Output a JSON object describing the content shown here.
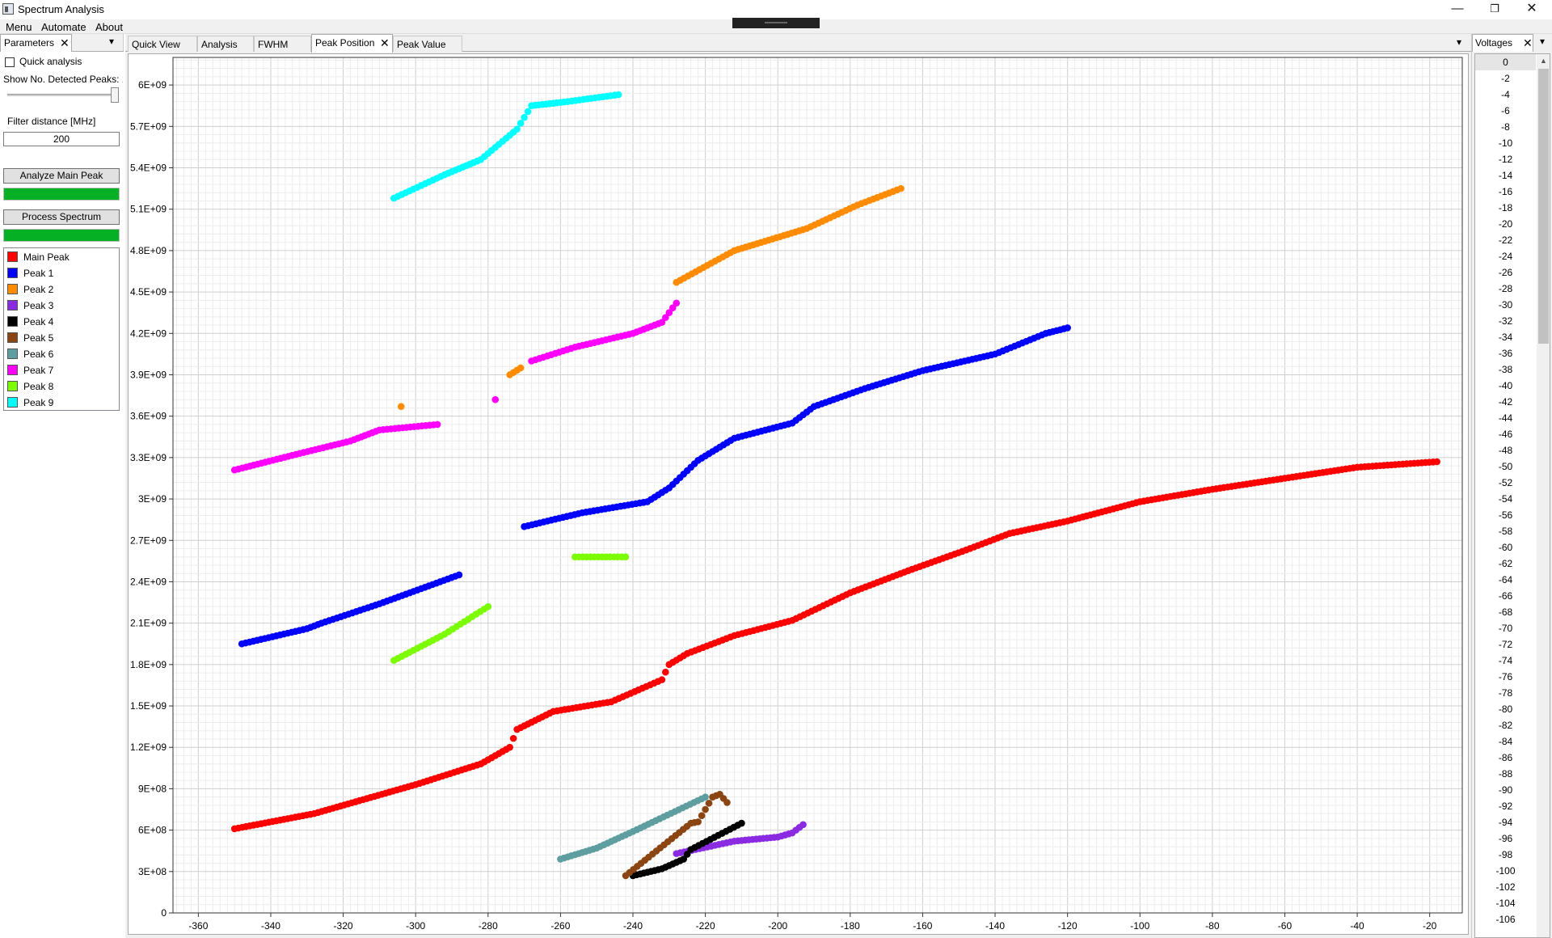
{
  "window": {
    "title": "Spectrum Analysis",
    "minimize": "—",
    "maximize": "❐",
    "close": "✕"
  },
  "menubar": {
    "items": [
      "Menu",
      "Automate",
      "About"
    ]
  },
  "left_panel": {
    "tab": "Parameters",
    "tab_close": "✕",
    "menu_glyph": "▾",
    "quick_analysis_label": "Quick analysis",
    "quick_analysis_checked": false,
    "show_peaks_label": "Show No. Detected Peaks: 10",
    "filter_label": "Filter distance [MHz]",
    "filter_value": "200",
    "analyze_button": "Analyze Main Peak",
    "analyze_progress": 1.0,
    "process_button": "Process Spectrum",
    "process_progress": 1.0,
    "legend": [
      {
        "label": "Main Peak",
        "color": "#ff0000"
      },
      {
        "label": "Peak 1",
        "color": "#0000ff"
      },
      {
        "label": "Peak 2",
        "color": "#ff8c00"
      },
      {
        "label": "Peak 3",
        "color": "#8a2be2"
      },
      {
        "label": "Peak 4",
        "color": "#000000"
      },
      {
        "label": "Peak 5",
        "color": "#8b4513"
      },
      {
        "label": "Peak 6",
        "color": "#5f9ea0"
      },
      {
        "label": "Peak 7",
        "color": "#ff00ff"
      },
      {
        "label": "Peak 8",
        "color": "#7cfc00"
      },
      {
        "label": "Peak 9",
        "color": "#00ffff"
      }
    ]
  },
  "center": {
    "tabs": [
      {
        "label": "Quick View",
        "active": false
      },
      {
        "label": "Analysis",
        "active": false
      },
      {
        "label": "FWHM",
        "active": false
      },
      {
        "label": "Peak Position",
        "active": true,
        "close": "✕"
      },
      {
        "label": "Peak Value",
        "active": false
      }
    ],
    "menu_glyph": "▾"
  },
  "right_panel": {
    "tab": "Voltages",
    "tab_close": "✕",
    "menu_glyph": "▾",
    "selected": "0",
    "scroll_up": "▲"
  },
  "chart_data": {
    "type": "scatter",
    "title": "",
    "xlabel": "",
    "ylabel": "",
    "xlim": [
      -367,
      -11
    ],
    "ylim": [
      0,
      6200000000
    ],
    "xticks": [
      -360,
      -340,
      -320,
      -300,
      -280,
      -260,
      -240,
      -220,
      -200,
      -180,
      -160,
      -140,
      -120,
      -100,
      -80,
      -60,
      -40,
      -20
    ],
    "yticks": [
      {
        "v": 0,
        "label": "0"
      },
      {
        "v": 300000000,
        "label": "3E+08"
      },
      {
        "v": 600000000,
        "label": "6E+08"
      },
      {
        "v": 900000000,
        "label": "9E+08"
      },
      {
        "v": 1200000000,
        "label": "1.2E+09"
      },
      {
        "v": 1500000000,
        "label": "1.5E+09"
      },
      {
        "v": 1800000000,
        "label": "1.8E+09"
      },
      {
        "v": 2100000000,
        "label": "2.1E+09"
      },
      {
        "v": 2400000000,
        "label": "2.4E+09"
      },
      {
        "v": 2700000000,
        "label": "2.7E+09"
      },
      {
        "v": 3000000000,
        "label": "3E+09"
      },
      {
        "v": 3300000000,
        "label": "3.3E+09"
      },
      {
        "v": 3600000000,
        "label": "3.6E+09"
      },
      {
        "v": 3900000000,
        "label": "3.9E+09"
      },
      {
        "v": 4200000000,
        "label": "4.2E+09"
      },
      {
        "v": 4500000000,
        "label": "4.5E+09"
      },
      {
        "v": 4800000000,
        "label": "4.8E+09"
      },
      {
        "v": 5100000000,
        "label": "5.1E+09"
      },
      {
        "v": 5400000000,
        "label": "5.4E+09"
      },
      {
        "v": 5700000000,
        "label": "5.7E+09"
      },
      {
        "v": 6000000000,
        "label": "6E+09"
      }
    ],
    "grid": true,
    "series": [
      {
        "name": "Main Peak",
        "color": "#ff0000",
        "points": [
          [
            -350,
            0.61
          ],
          [
            -328,
            0.72
          ],
          [
            -300,
            0.93
          ],
          [
            -282,
            1.08
          ],
          [
            -274,
            1.2
          ],
          [
            -272,
            1.33
          ],
          [
            -262,
            1.46
          ],
          [
            -246,
            1.53
          ],
          [
            -232,
            1.69
          ],
          [
            -230,
            1.8
          ],
          [
            -225,
            1.88
          ],
          [
            -212,
            2.01
          ],
          [
            -196,
            2.12
          ],
          [
            -180,
            2.32
          ],
          [
            -164,
            2.48
          ],
          [
            -148,
            2.63
          ],
          [
            -136,
            2.75
          ],
          [
            -120,
            2.84
          ],
          [
            -100,
            2.98
          ],
          [
            -80,
            3.07
          ],
          [
            -60,
            3.15
          ],
          [
            -40,
            3.23
          ],
          [
            -18,
            3.27
          ]
        ]
      },
      {
        "name": "Peak 1",
        "color": "#0000ff",
        "points": [
          [
            -348,
            1.95
          ],
          [
            -330,
            2.06
          ],
          [
            -326,
            2.1
          ],
          [
            -310,
            2.24
          ],
          [
            -288,
            2.45
          ]
        ]
      },
      {
        "name": "Peak 1",
        "color": "#0000ff",
        "points": [
          [
            -270,
            2.8
          ],
          [
            -254,
            2.9
          ],
          [
            -236,
            2.98
          ],
          [
            -230,
            3.08
          ],
          [
            -222,
            3.28
          ],
          [
            -212,
            3.44
          ],
          [
            -196,
            3.55
          ],
          [
            -190,
            3.67
          ],
          [
            -176,
            3.8
          ],
          [
            -160,
            3.93
          ],
          [
            -140,
            4.05
          ],
          [
            -126,
            4.2
          ],
          [
            -120,
            4.24
          ]
        ]
      },
      {
        "name": "Peak 2",
        "color": "#ff8c00",
        "points": [
          [
            -304,
            3.67
          ]
        ]
      },
      {
        "name": "Peak 2",
        "color": "#ff8c00",
        "points": [
          [
            -274,
            3.9
          ],
          [
            -271,
            3.95
          ]
        ]
      },
      {
        "name": "Peak 2",
        "color": "#ff8c00",
        "points": [
          [
            -228,
            4.57
          ],
          [
            -212,
            4.8
          ],
          [
            -192,
            4.96
          ],
          [
            -178,
            5.13
          ],
          [
            -166,
            5.25
          ]
        ]
      },
      {
        "name": "Peak 3",
        "color": "#8a2be2",
        "points": [
          [
            -228,
            0.43
          ],
          [
            -212,
            0.52
          ],
          [
            -204,
            0.54
          ],
          [
            -200,
            0.55
          ],
          [
            -196,
            0.58
          ],
          [
            -193,
            0.64
          ]
        ]
      },
      {
        "name": "Peak 4",
        "color": "#000000",
        "points": [
          [
            -240,
            0.27
          ],
          [
            -232,
            0.32
          ],
          [
            -226,
            0.39
          ],
          [
            -224,
            0.46
          ],
          [
            -210,
            0.65
          ]
        ]
      },
      {
        "name": "Peak 5",
        "color": "#8b4513",
        "points": [
          [
            -242,
            0.27
          ],
          [
            -224,
            0.65
          ],
          [
            -222,
            0.66
          ],
          [
            -218,
            0.84
          ],
          [
            -216,
            0.86
          ],
          [
            -214,
            0.8
          ]
        ]
      },
      {
        "name": "Peak 6",
        "color": "#5f9ea0",
        "points": [
          [
            -260,
            0.39
          ],
          [
            -250,
            0.47
          ],
          [
            -240,
            0.59
          ],
          [
            -220,
            0.84
          ]
        ]
      },
      {
        "name": "Peak 7",
        "color": "#ff00ff",
        "points": [
          [
            -350,
            3.21
          ],
          [
            -332,
            3.33
          ],
          [
            -318,
            3.42
          ],
          [
            -310,
            3.5
          ],
          [
            -294,
            3.54
          ]
        ]
      },
      {
        "name": "Peak 7",
        "color": "#ff00ff",
        "points": [
          [
            -278,
            3.72
          ]
        ]
      },
      {
        "name": "Peak 7",
        "color": "#ff00ff",
        "points": [
          [
            -268,
            4.0
          ],
          [
            -256,
            4.1
          ],
          [
            -240,
            4.2
          ],
          [
            -232,
            4.28
          ],
          [
            -228,
            4.42
          ]
        ]
      },
      {
        "name": "Peak 8",
        "color": "#7cfc00",
        "points": [
          [
            -306,
            1.83
          ],
          [
            -292,
            2.02
          ],
          [
            -280,
            2.22
          ]
        ]
      },
      {
        "name": "Peak 8",
        "color": "#7cfc00",
        "points": [
          [
            -256,
            2.58
          ],
          [
            -242,
            2.58
          ]
        ]
      },
      {
        "name": "Peak 9",
        "color": "#00ffff",
        "points": [
          [
            -306,
            5.18
          ],
          [
            -292,
            5.35
          ],
          [
            -282,
            5.46
          ],
          [
            -272,
            5.68
          ],
          [
            -268,
            5.85
          ],
          [
            -258,
            5.88
          ],
          [
            -244,
            5.93
          ]
        ]
      }
    ]
  }
}
